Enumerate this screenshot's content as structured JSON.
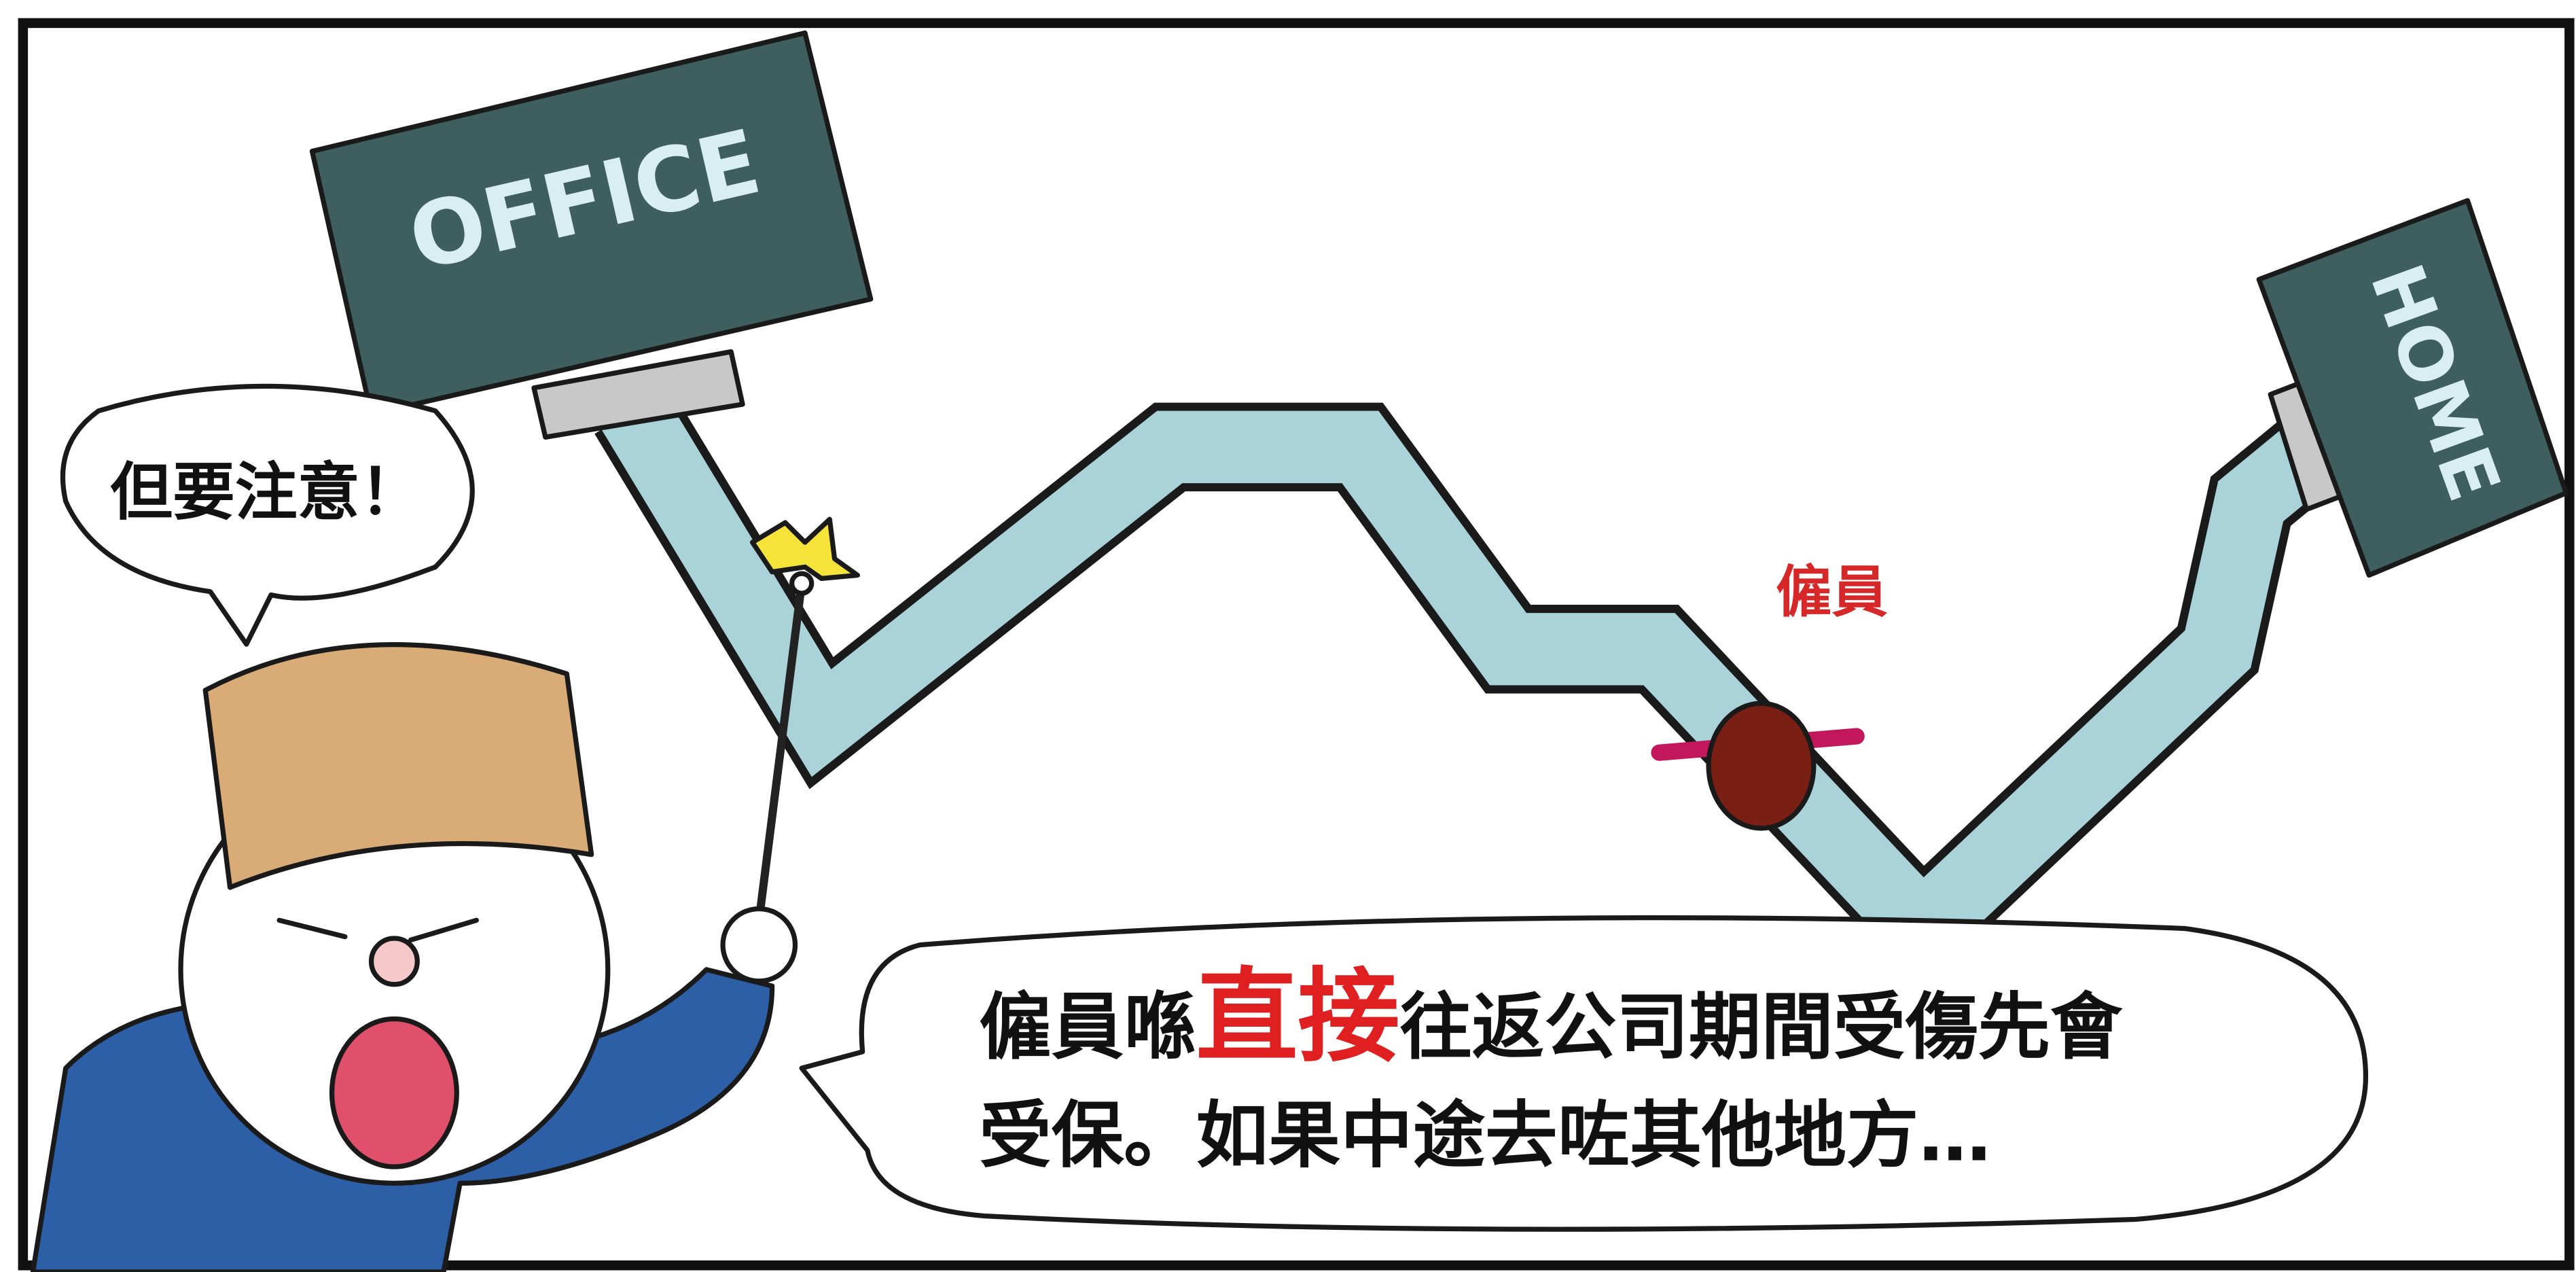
{
  "signs": {
    "office": "OFFICE",
    "home": "HOME"
  },
  "caption_bubble": "但要注意！",
  "walker_label": "僱員",
  "speech_bubble": {
    "line1": {
      "before": "僱員喺",
      "emphasis": "直接",
      "after": "往返公司期間受傷先會"
    },
    "line2": "受保。如果中途去咗其他地方…"
  }
}
